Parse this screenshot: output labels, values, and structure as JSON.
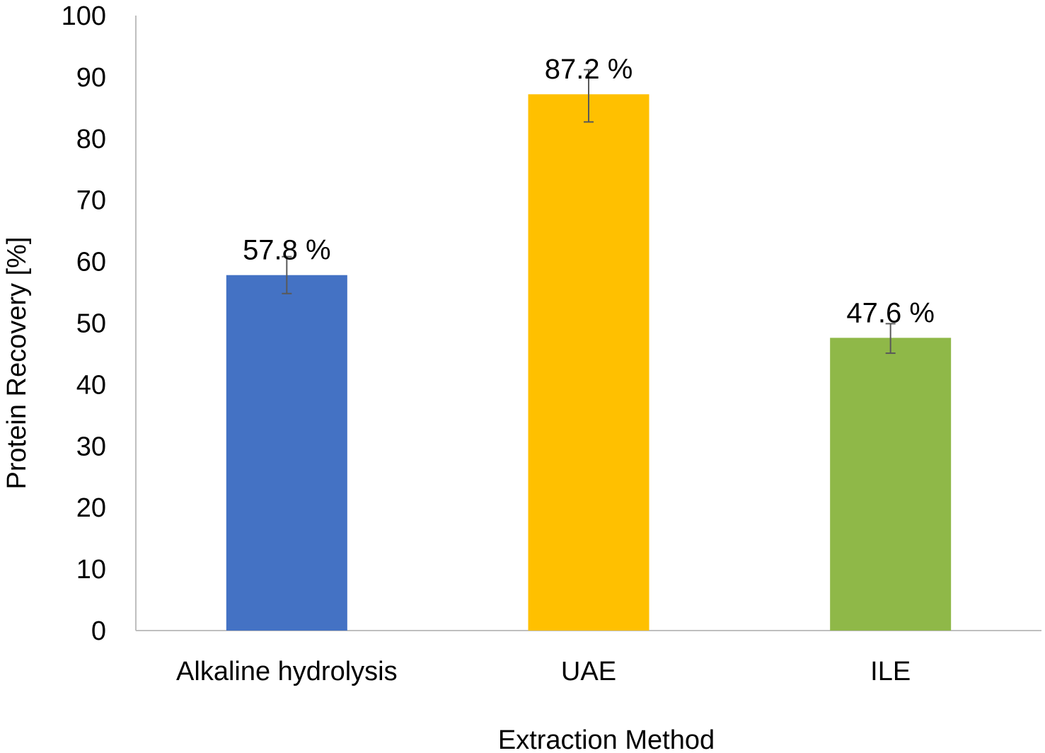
{
  "chart_data": {
    "type": "bar",
    "categories": [
      "Alkaline hydrolysis",
      "UAE",
      "ILE"
    ],
    "values": [
      57.8,
      87.2,
      47.6
    ],
    "error_low": [
      54.8,
      82.7,
      45.1
    ],
    "error_high": [
      60.8,
      91.2,
      49.9
    ],
    "data_labels": [
      "57.8 %",
      "87.2 %",
      "47.6 %"
    ],
    "colors": [
      "#4472C4",
      "#FFC000",
      "#8FB848"
    ],
    "xlabel": "Extraction Method",
    "ylabel": "Protein Recovery [%]",
    "ylim": [
      0,
      100
    ],
    "yticks": [
      "0",
      "10",
      "20",
      "30",
      "40",
      "50",
      "60",
      "70",
      "80",
      "90",
      "100"
    ],
    "grid": false,
    "legend": "none"
  }
}
